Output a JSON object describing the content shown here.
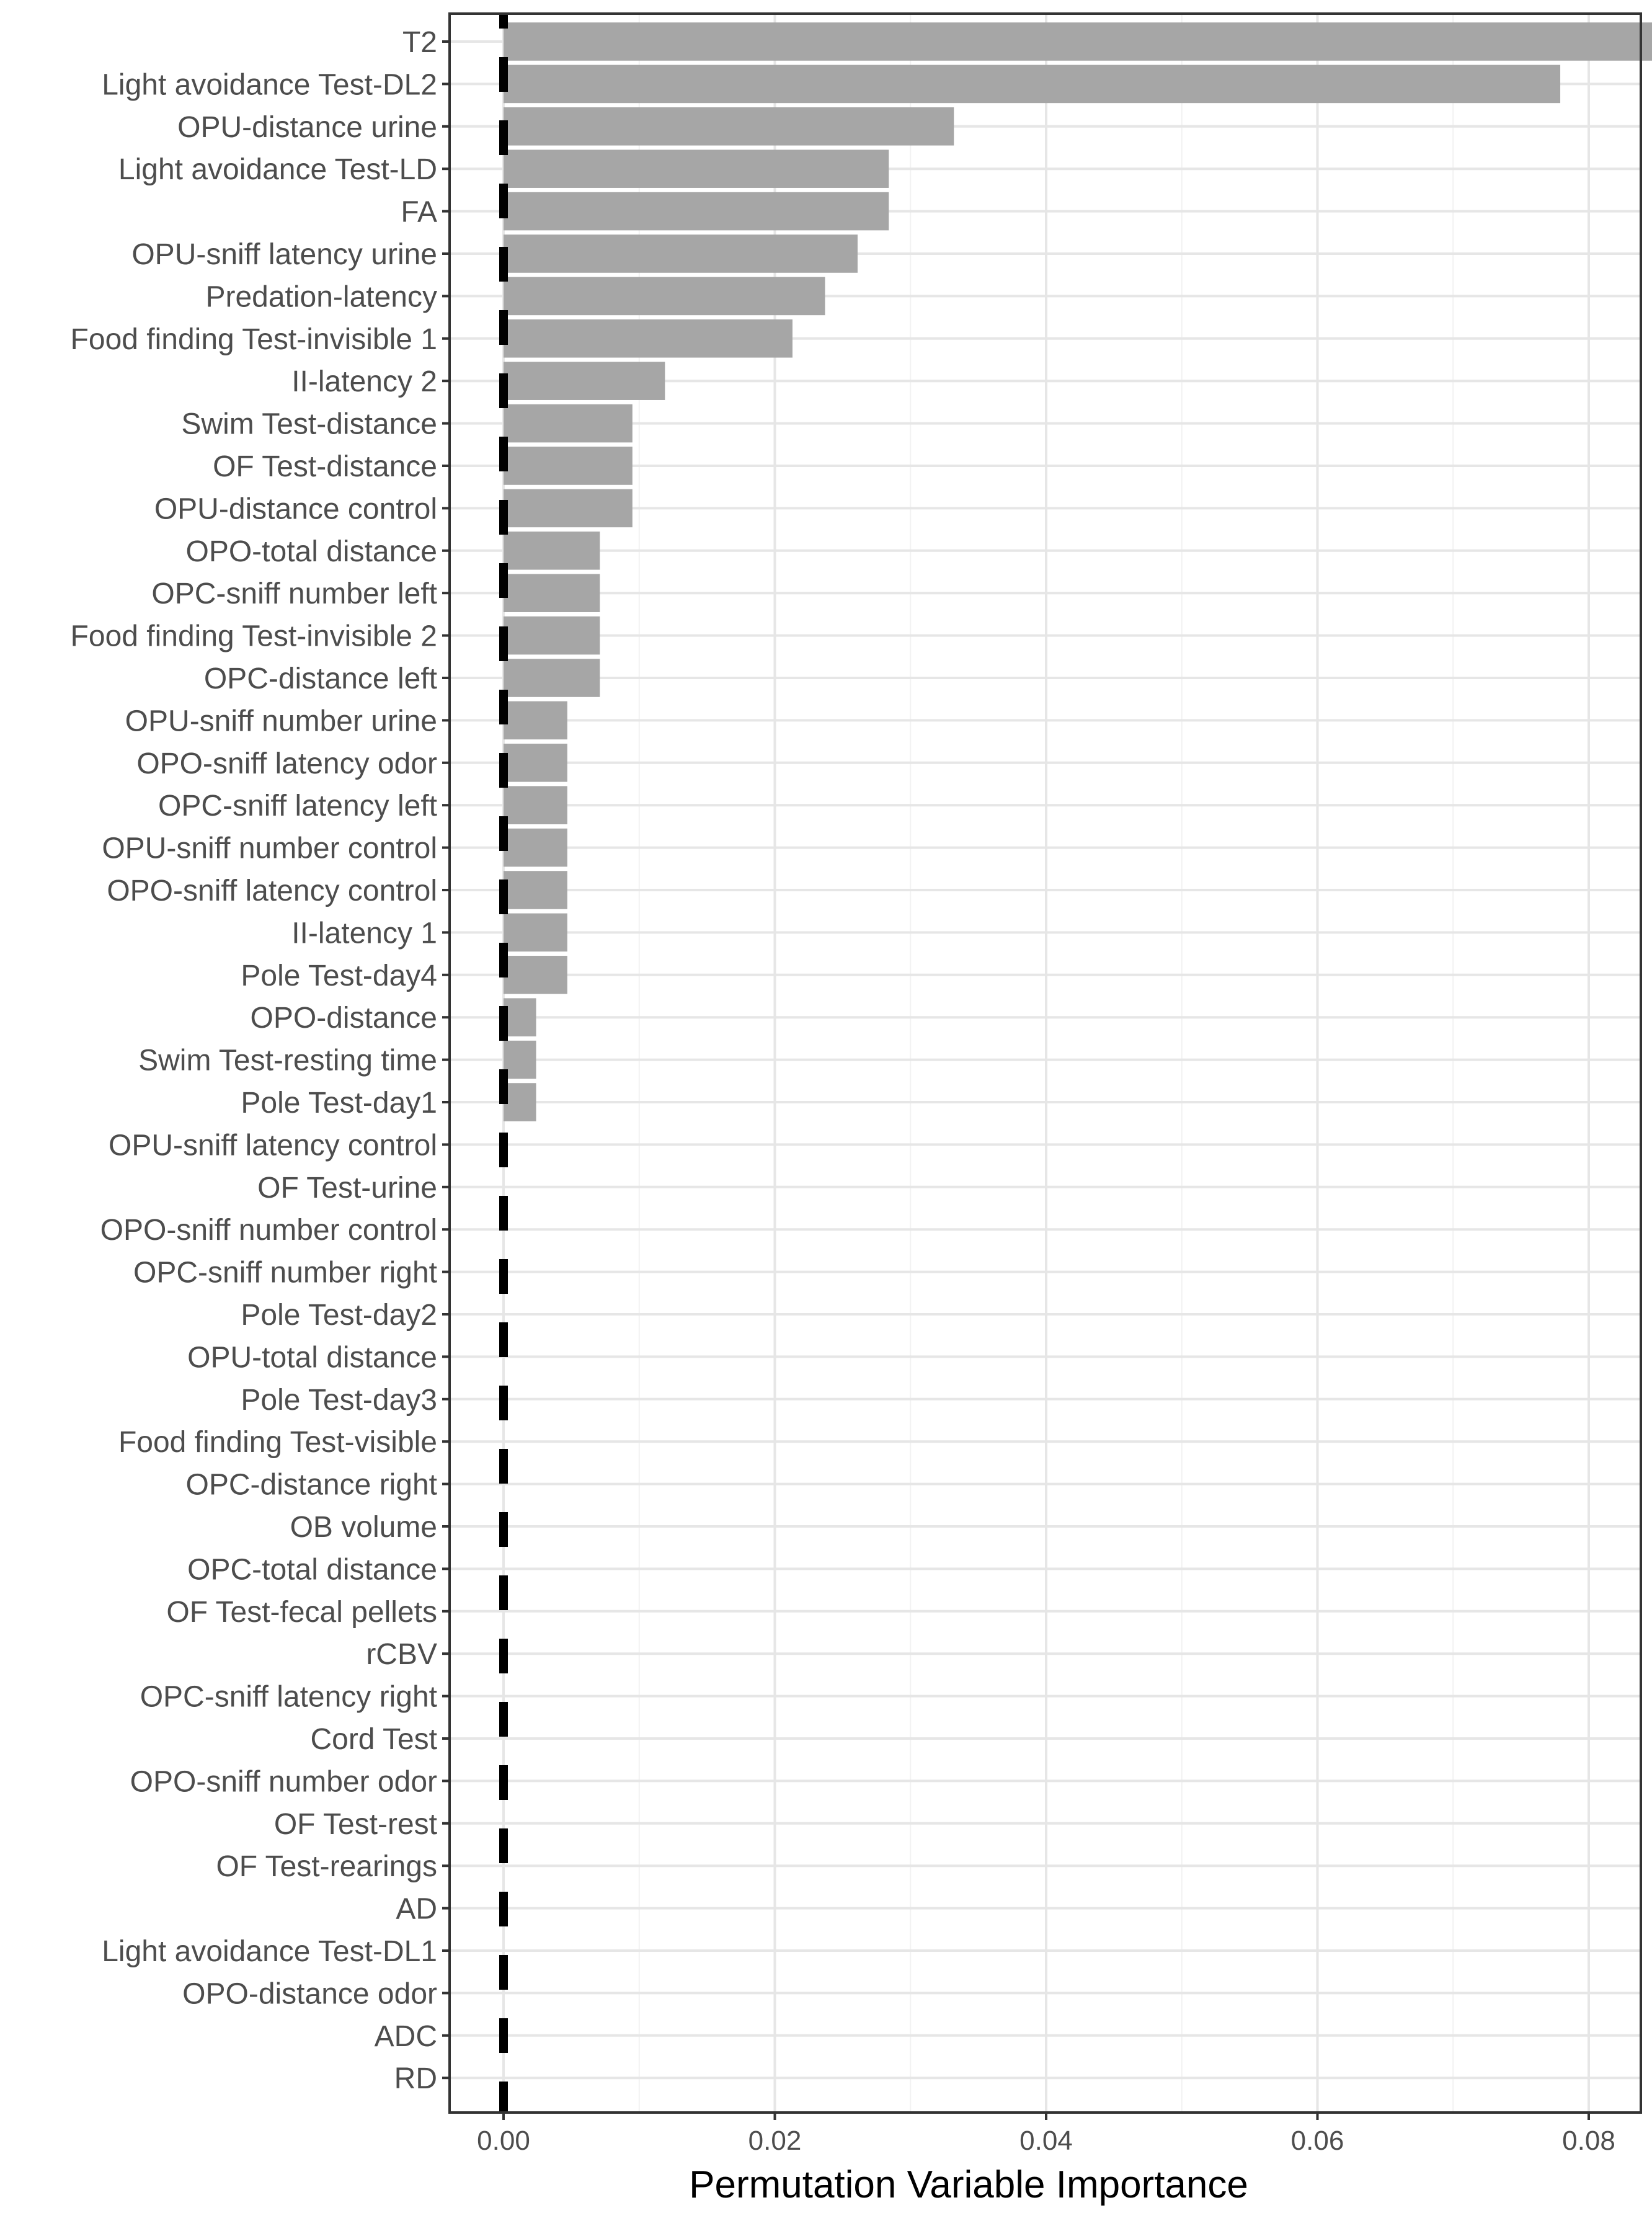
{
  "chart_data": {
    "type": "bar",
    "orientation": "horizontal",
    "xlabel": "Permutation Variable Importance",
    "ylabel": "",
    "xlim": [
      -0.0045,
      0.0895
    ],
    "x_ticks": [
      "0.00",
      "0.02",
      "0.04",
      "0.06",
      "0.08"
    ],
    "x_tick_values": [
      0,
      0.02,
      0.04,
      0.06,
      0.08
    ],
    "grid": true,
    "categories": [
      "T2",
      "Light avoidance Test-DL2",
      "OPU-distance urine",
      "Light avoidance Test-LD",
      "FA",
      "OPU-sniff latency urine",
      "Predation-latency",
      "Food finding Test-invisible 1",
      "II-latency 2",
      "Swim Test-distance",
      "OF Test-distance",
      "OPU-distance control",
      "OPO-total distance",
      "OPC-sniff number left",
      "Food finding Test-invisible 2",
      "OPC-distance left",
      "OPU-sniff number urine",
      "OPO-sniff latency odor",
      "OPC-sniff latency left",
      "OPU-sniff number control",
      "OPO-sniff latency control",
      "II-latency 1",
      "Pole Test-day4",
      "OPO-distance",
      "Swim Test-resting time",
      "Pole Test-day1",
      "OPU-sniff latency control",
      "OF Test-urine",
      "OPO-sniff number control",
      "OPC-sniff number right",
      "Pole Test-day2",
      "OPU-total distance",
      "Pole Test-day3",
      "Food finding Test-visible",
      "OPC-distance right",
      "OB volume",
      "OPC-total distance",
      "OF Test-fecal pellets",
      "rCBV",
      "OPC-sniff latency right",
      "Cord Test",
      "OPO-sniff number odor",
      "OF Test-rest",
      "OF Test-rearings",
      "AD",
      "Light avoidance Test-DL1",
      "OPO-distance odor",
      "ADC",
      "RD"
    ],
    "values": [
      0.0851,
      0.0779,
      0.0332,
      0.0284,
      0.0284,
      0.0261,
      0.0237,
      0.0213,
      0.0119,
      0.0095,
      0.0095,
      0.0095,
      0.0071,
      0.0071,
      0.0071,
      0.0071,
      0.0047,
      0.0047,
      0.0047,
      0.0047,
      0.0047,
      0.0047,
      0.0047,
      0.0024,
      0.0024,
      0.0024,
      0,
      0,
      0,
      0,
      0,
      0,
      0,
      0,
      0,
      0,
      0,
      0,
      0,
      0,
      0,
      0,
      0,
      0,
      0,
      0,
      0,
      0,
      0
    ],
    "reference_line": {
      "x": 0,
      "style": "dashed",
      "color": "#000000"
    },
    "colors": {
      "bar": "#a6a6a6",
      "grid_major": "#e6e6e6",
      "grid_minor": "#f2f2f2",
      "border": "#333333",
      "reference": "#000000"
    }
  }
}
